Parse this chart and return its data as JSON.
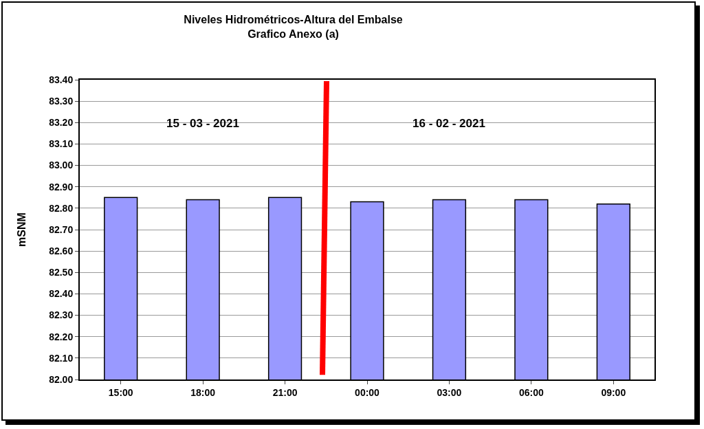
{
  "chart_data": {
    "type": "bar",
    "title": "Niveles Hidrométricos-Altura del Embalse\nGrafico Anexo (a)",
    "ylabel": "mSNM",
    "categories": [
      "15:00",
      "18:00",
      "21:00",
      "00:00",
      "03:00",
      "06:00",
      "09:00"
    ],
    "values": [
      82.85,
      82.84,
      82.85,
      82.83,
      82.84,
      82.84,
      82.82
    ],
    "color": "#9999ff",
    "ylim": [
      82.0,
      83.4
    ],
    "yticks": [
      {
        "value": 82.0,
        "label": "82.00"
      },
      {
        "value": 82.1,
        "label": "82.10"
      },
      {
        "value": 82.2,
        "label": "82.20"
      },
      {
        "value": 82.3,
        "label": "82.30"
      },
      {
        "value": 82.4,
        "label": "82.40"
      },
      {
        "value": 82.5,
        "label": "82.50"
      },
      {
        "value": 82.6,
        "label": "82.60"
      },
      {
        "value": 82.7,
        "label": "82.70"
      },
      {
        "value": 82.8,
        "label": "82.80"
      },
      {
        "value": 82.9,
        "label": "82.90"
      },
      {
        "value": 83.0,
        "label": "83.00"
      },
      {
        "value": 83.1,
        "label": "83.10"
      },
      {
        "value": 83.2,
        "label": "83.20"
      },
      {
        "value": 83.3,
        "label": "83.30"
      },
      {
        "value": 83.4,
        "label": "83.40"
      }
    ],
    "grid": "y",
    "annotations": [
      "15 - 03 - 2021",
      "16 - 02 - 2021"
    ]
  }
}
